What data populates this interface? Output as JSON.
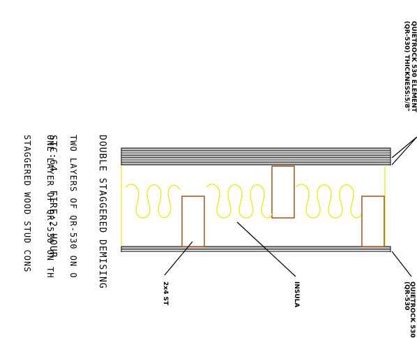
{
  "assembly": {
    "title": "DOUBLE STAGGERED DEMISING",
    "description": [
      "TWO LAYERS OF QR-530 ON O",
      "ONE LAYER OF QR-530 ON TH",
      "STAGGERED WOOD STUD CONS"
    ],
    "ratings": "STC:64   FIRE:2 HOUR"
  },
  "callouts": {
    "top_line_1": "QUIETROCK 530 ELEMENT",
    "top_line_2": "(QR-530) THICKNESS:5/8\"",
    "bottom_line_1": "QUIETROCK 530",
    "bottom_line_2": "(QR-530",
    "insulation": "INSULA",
    "stud": "2x4 ST"
  },
  "colors": {
    "board": "#9a9a9a",
    "insulation": "#e8e800",
    "stud": "#a0521e",
    "leader": "#000000"
  }
}
